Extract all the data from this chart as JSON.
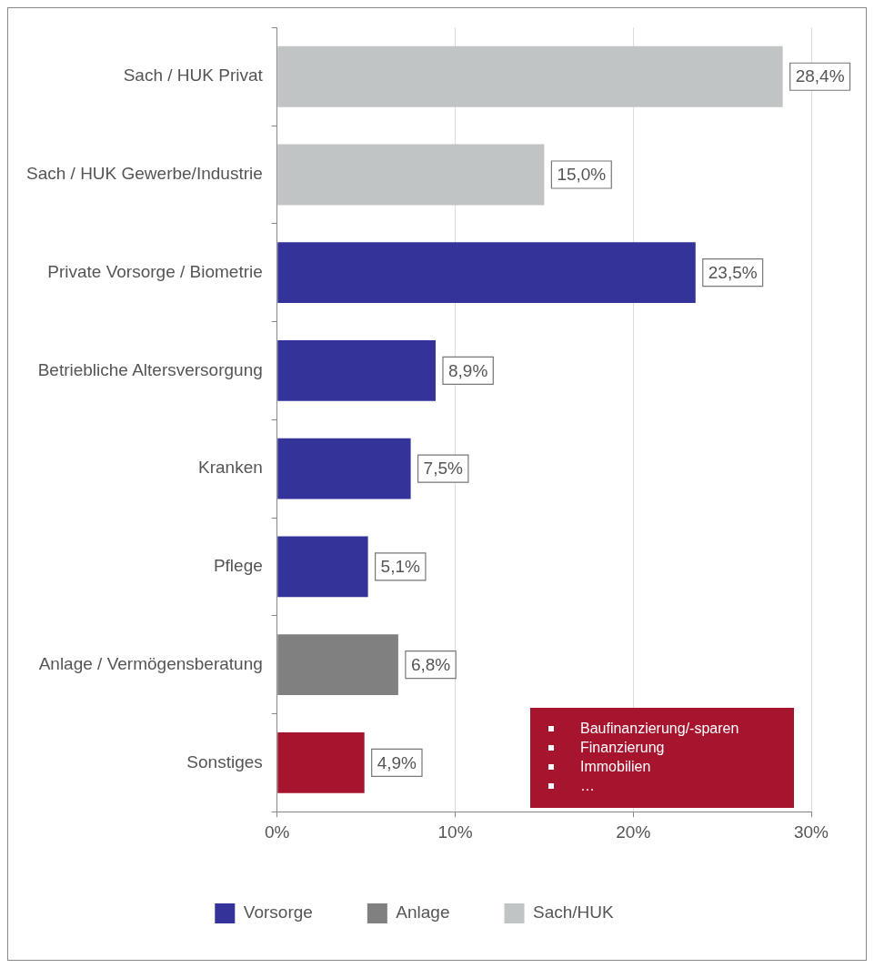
{
  "chart_data": {
    "type": "bar",
    "orientation": "horizontal",
    "stacked": true,
    "categories": [
      "Sach / HUK Privat",
      "Sach / HUK Gewerbe/Industrie",
      "Private Vorsorge / Biometrie",
      "Betriebliche Altersversorgung",
      "Kranken",
      "Pflege",
      "Anlage / Vermögensberatung",
      "Sonstiges"
    ],
    "series": [
      {
        "name": "Vorsorge",
        "color": "#333399",
        "values": [
          null,
          null,
          23.5,
          8.9,
          7.5,
          5.1,
          null,
          null
        ],
        "value_labels": [
          null,
          null,
          "23,5%",
          "8,9%",
          "7,5%",
          "5,1%",
          null,
          null
        ]
      },
      {
        "name": "Anlage",
        "color": "#808080",
        "values": [
          null,
          null,
          null,
          null,
          null,
          null,
          6.8,
          null
        ],
        "value_labels": [
          null,
          null,
          null,
          null,
          null,
          null,
          "6,8%",
          null
        ]
      },
      {
        "name": "Sach/HUK",
        "color": "#c0c4c4",
        "values": [
          28.4,
          15.0,
          null,
          null,
          null,
          null,
          null,
          null
        ],
        "value_labels": [
          "28,4%",
          "15,0%",
          null,
          null,
          null,
          null,
          null,
          null
        ]
      },
      {
        "color": "#a6142e",
        "values": [
          null,
          null,
          null,
          null,
          null,
          null,
          null,
          4.9
        ],
        "value_labels": [
          null,
          null,
          null,
          null,
          null,
          null,
          null,
          "4,9%"
        ]
      }
    ],
    "xlim": [
      0,
      30
    ],
    "xticks": [
      {
        "value": 0,
        "label": "0%"
      },
      {
        "value": 10,
        "label": "10%"
      },
      {
        "value": 20,
        "label": "20%"
      },
      {
        "value": 30,
        "label": "30%"
      }
    ],
    "grid": "x",
    "legend": "bottom",
    "annotations": [
      "Baufinanzierung/-sparen",
      "Finanzierung",
      "Immobilien",
      "…"
    ]
  }
}
